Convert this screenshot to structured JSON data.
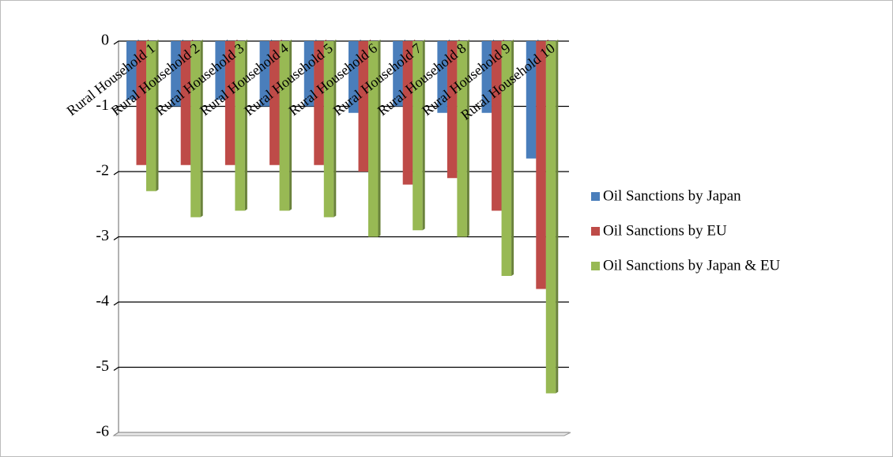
{
  "chart_data": {
    "type": "bar",
    "categories": [
      "Rural Household 1",
      "Rural Household 2",
      "Rural Household 3",
      "Rural Household 4",
      "Rural Household 5",
      "Rural Household 6",
      "Rural Household 7",
      "Rural Household 8",
      "Rural Household 9",
      "Rural Household 10"
    ],
    "series": [
      {
        "name": "Oil Sanctions by Japan",
        "color": "#4a7ebb",
        "values": [
          -0.9,
          -1.0,
          -0.9,
          -1.0,
          -1.0,
          -1.1,
          -1.0,
          -1.1,
          -1.1,
          -1.8
        ]
      },
      {
        "name": "Oil Sanctions by EU",
        "color": "#be4b48",
        "values": [
          -1.9,
          -1.9,
          -1.9,
          -1.9,
          -1.9,
          -2.0,
          -2.2,
          -2.1,
          -2.6,
          -3.8
        ]
      },
      {
        "name": "Oil Sanctions by Japan & EU",
        "color": "#98b954",
        "values": [
          -2.3,
          -2.7,
          -2.6,
          -2.6,
          -2.7,
          -3.0,
          -2.9,
          -3.0,
          -3.6,
          -5.4
        ]
      }
    ],
    "ylim": [
      -6,
      0
    ],
    "yticks": [
      0,
      -1,
      -2,
      -3,
      -4,
      -5,
      -6
    ],
    "grid": true,
    "legend": "right"
  }
}
